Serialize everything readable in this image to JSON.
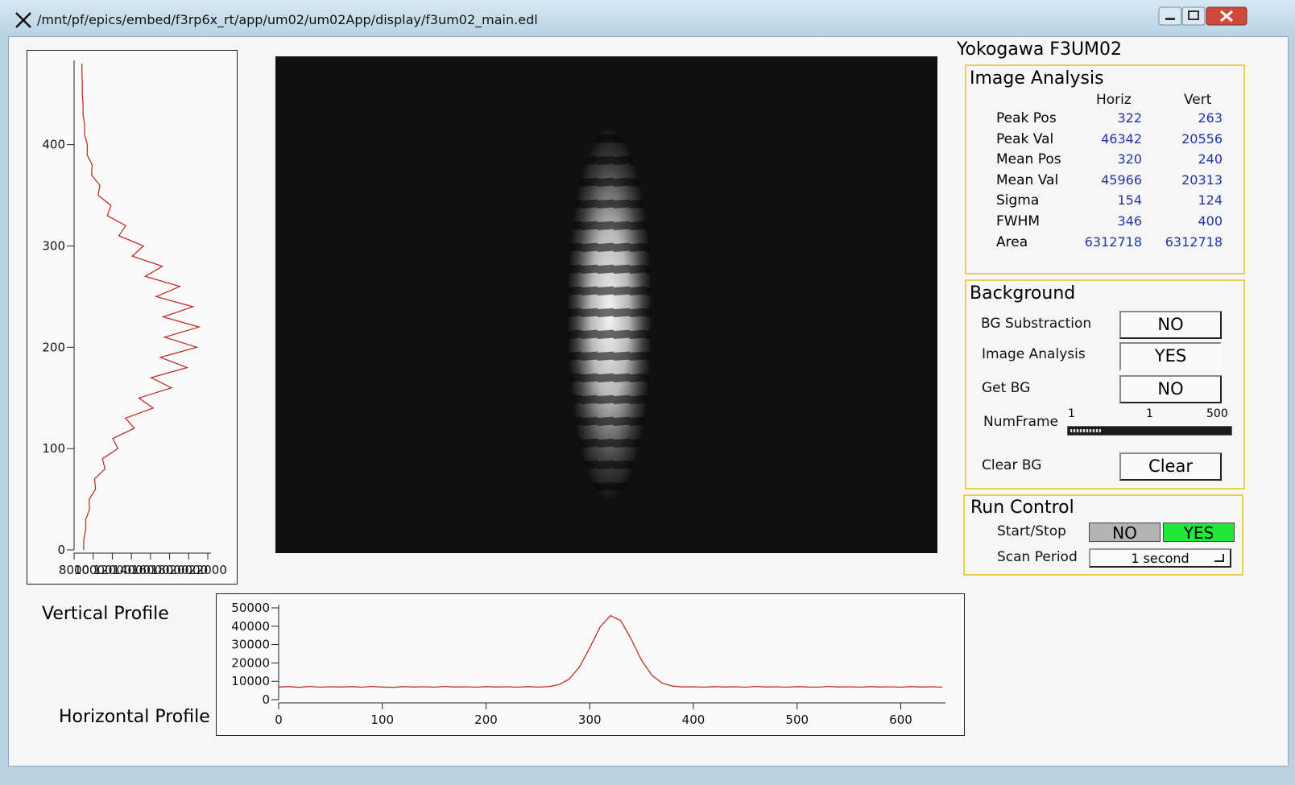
{
  "window": {
    "title": "/mnt/pf/epics/embed/f3rp6x_rt/app/um02/um02App/display/f3um02_main.edl"
  },
  "device_title": "Yokogawa F3UM02",
  "image_analysis": {
    "title": "Image Analysis",
    "columns": [
      "Horiz",
      "Vert"
    ],
    "rows": [
      {
        "label": "Peak Pos",
        "horiz": 322,
        "vert": 263
      },
      {
        "label": "Peak Val",
        "horiz": 46342,
        "vert": 20556
      },
      {
        "label": "Mean Pos",
        "horiz": 320,
        "vert": 240
      },
      {
        "label": "Mean Val",
        "horiz": 45966,
        "vert": 20313
      },
      {
        "label": "Sigma",
        "horiz": 154,
        "vert": 124
      },
      {
        "label": "FWHM",
        "horiz": 346,
        "vert": 400
      },
      {
        "label": "Area",
        "horiz": 6312718,
        "vert": 6312718
      }
    ]
  },
  "background": {
    "title": "Background",
    "bg_substraction": {
      "label": "BG Substraction",
      "button": "NO"
    },
    "image_analysis": {
      "label": "Image Analysis",
      "button": "YES"
    },
    "get_bg": {
      "label": "Get BG",
      "button": "NO"
    },
    "num_frame": {
      "label": "NumFrame",
      "min": 1,
      "value": 1,
      "max": 500
    },
    "clear_bg": {
      "label": "Clear BG",
      "button": "Clear"
    }
  },
  "run_control": {
    "title": "Run Control",
    "start_stop": {
      "label": "Start/Stop",
      "options": [
        "NO",
        "YES"
      ],
      "active": 1
    },
    "scan_period": {
      "label": "Scan Period",
      "value": "1 second"
    }
  },
  "chart_data": [
    {
      "type": "line",
      "title": "Vertical Profile",
      "orientation": "vertical",
      "color": "#c0302a",
      "x": [
        0,
        10,
        20,
        30,
        40,
        50,
        60,
        70,
        80,
        90,
        100,
        110,
        120,
        130,
        140,
        150,
        160,
        170,
        180,
        190,
        200,
        210,
        220,
        230,
        240,
        250,
        260,
        270,
        280,
        290,
        300,
        310,
        320,
        330,
        340,
        350,
        360,
        370,
        380,
        390,
        400,
        410,
        420,
        430,
        440,
        450,
        460,
        470,
        480
      ],
      "values": [
        9000,
        9010,
        9220,
        9220,
        9610,
        9580,
        10250,
        10140,
        11240,
        10970,
        12590,
        12060,
        14310,
        13380,
        16270,
        14780,
        18200,
        16070,
        19830,
        17030,
        20850,
        17480,
        21080,
        17330,
        20440,
        16600,
        19070,
        15450,
        17250,
        14080,
        15270,
        12700,
        13410,
        11480,
        11860,
        10520,
        10690,
        9830,
        9900,
        9370,
        9390,
        9100,
        9100,
        8940,
        8940,
        8860,
        8860,
        8830,
        8820
      ],
      "xlim": [
        0,
        480
      ],
      "xticks": [
        0,
        100,
        200,
        300,
        400
      ],
      "ylim": [
        8000,
        22000
      ],
      "yticks": [
        8000,
        10000,
        12000,
        14000,
        16000,
        18000,
        20000,
        22000
      ]
    },
    {
      "type": "line",
      "title": "Horizontal Profile",
      "orientation": "horizontal",
      "color": "#c0302a",
      "x": [
        0,
        10,
        20,
        30,
        40,
        50,
        60,
        70,
        80,
        90,
        100,
        110,
        120,
        130,
        140,
        150,
        160,
        170,
        180,
        190,
        200,
        210,
        220,
        230,
        240,
        250,
        260,
        270,
        280,
        290,
        300,
        310,
        320,
        330,
        340,
        350,
        360,
        370,
        380,
        390,
        400,
        410,
        420,
        430,
        440,
        450,
        460,
        470,
        480,
        490,
        500,
        510,
        520,
        530,
        540,
        550,
        560,
        570,
        580,
        590,
        600,
        610,
        620,
        630,
        640
      ],
      "values": [
        6900,
        7100,
        6700,
        7200,
        6800,
        7000,
        6900,
        7100,
        6800,
        7200,
        6900,
        6700,
        7100,
        6900,
        7000,
        6800,
        7200,
        6900,
        7000,
        6800,
        7100,
        6900,
        7000,
        6800,
        7100,
        6860,
        7110,
        8130,
        11110,
        17700,
        28200,
        39530,
        45800,
        42980,
        32950,
        21500,
        13240,
        9000,
        7390,
        6920,
        7000,
        6800,
        7100,
        6900,
        7000,
        6800,
        7200,
        6900,
        7000,
        6800,
        7100,
        6900,
        6800,
        7200,
        6900,
        7000,
        6800,
        7100,
        6900,
        7000,
        6800,
        7100,
        6900,
        7000,
        6800
      ],
      "xlim": [
        0,
        640
      ],
      "xticks": [
        0,
        100,
        200,
        300,
        400,
        500,
        600
      ],
      "ylim": [
        0,
        50000
      ],
      "yticks": [
        0,
        10000,
        20000,
        30000,
        40000,
        50000
      ]
    }
  ]
}
